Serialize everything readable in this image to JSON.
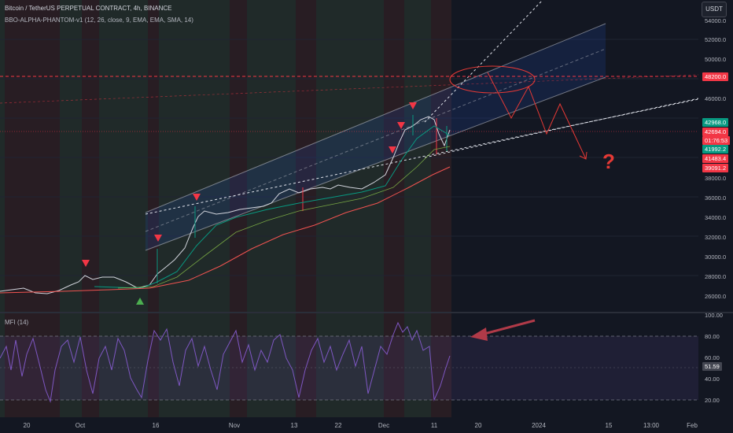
{
  "header": {
    "title": "Bitcoin / TetherUS PERPETUAL CONTRACT, 4h, BINANCE",
    "indicator": "BBO-ALPHA-PHANTOM-v1 (12, 26, close, 9, EMA, EMA, SMA, 14)",
    "currency_button": "USDT"
  },
  "price_axis": {
    "labels": [
      "54000.0",
      "52000.0",
      "50000.0",
      "46000.0",
      "38000.0",
      "36000.0",
      "34000.0",
      "32000.0",
      "30000.0",
      "28000.0",
      "26000.0"
    ],
    "tags": [
      {
        "text": "48200.0",
        "color": "#f23645"
      },
      {
        "text": "42968.0",
        "color": "#089981"
      },
      {
        "text": "42694.0",
        "color": "#f23645"
      },
      {
        "text": "01:76:53",
        "color": "#f23645"
      },
      {
        "text": "41992.2",
        "color": "#089981"
      },
      {
        "text": "41483.4",
        "color": "#f23645"
      },
      {
        "text": "39091.2",
        "color": "#f23645"
      }
    ]
  },
  "mfi_pane": {
    "label": "MFI (14)",
    "axis_labels": [
      "100.00",
      "80.00",
      "60.00",
      "40.00",
      "20.00"
    ],
    "value_tag": "51.59"
  },
  "time_axis": {
    "labels": [
      "20",
      "Oct",
      "16",
      "Nov",
      "13",
      "22",
      "Dec",
      "11",
      "20",
      "2024",
      "15",
      "13:00",
      "Feb"
    ]
  },
  "annotations": {
    "question_mark": "?"
  },
  "colors": {
    "background": "#131722",
    "bull": "#089981",
    "bear": "#f23645",
    "channel": "#2962ff",
    "mfi_line": "#7e57c2"
  }
}
